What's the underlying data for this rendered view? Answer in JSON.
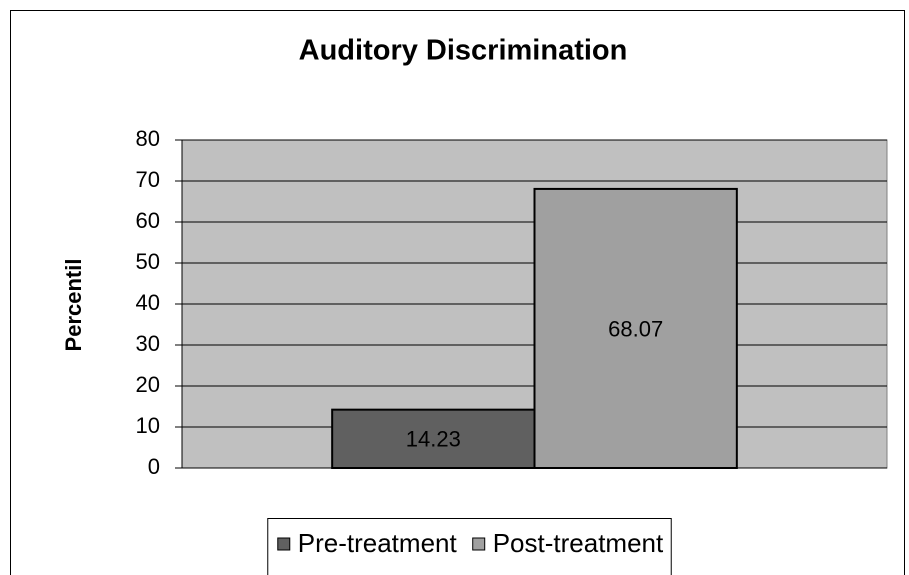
{
  "chart_data": {
    "type": "bar",
    "title": "Auditory Discrimination",
    "y_label": "Percentil",
    "categories": [
      null
    ],
    "series": [
      {
        "name": "Pre-treatment",
        "color": "#606060",
        "values": [
          14.23
        ]
      },
      {
        "name": "Post-treatment",
        "color": "#a0a0a0",
        "values": [
          68.07
        ]
      }
    ],
    "ylim": [
      0,
      80
    ],
    "yticks": [
      0,
      10,
      20,
      30,
      40,
      50,
      60,
      70,
      80
    ],
    "grid": true,
    "plot_background": "#c0c0c0",
    "legend": "bottom"
  }
}
